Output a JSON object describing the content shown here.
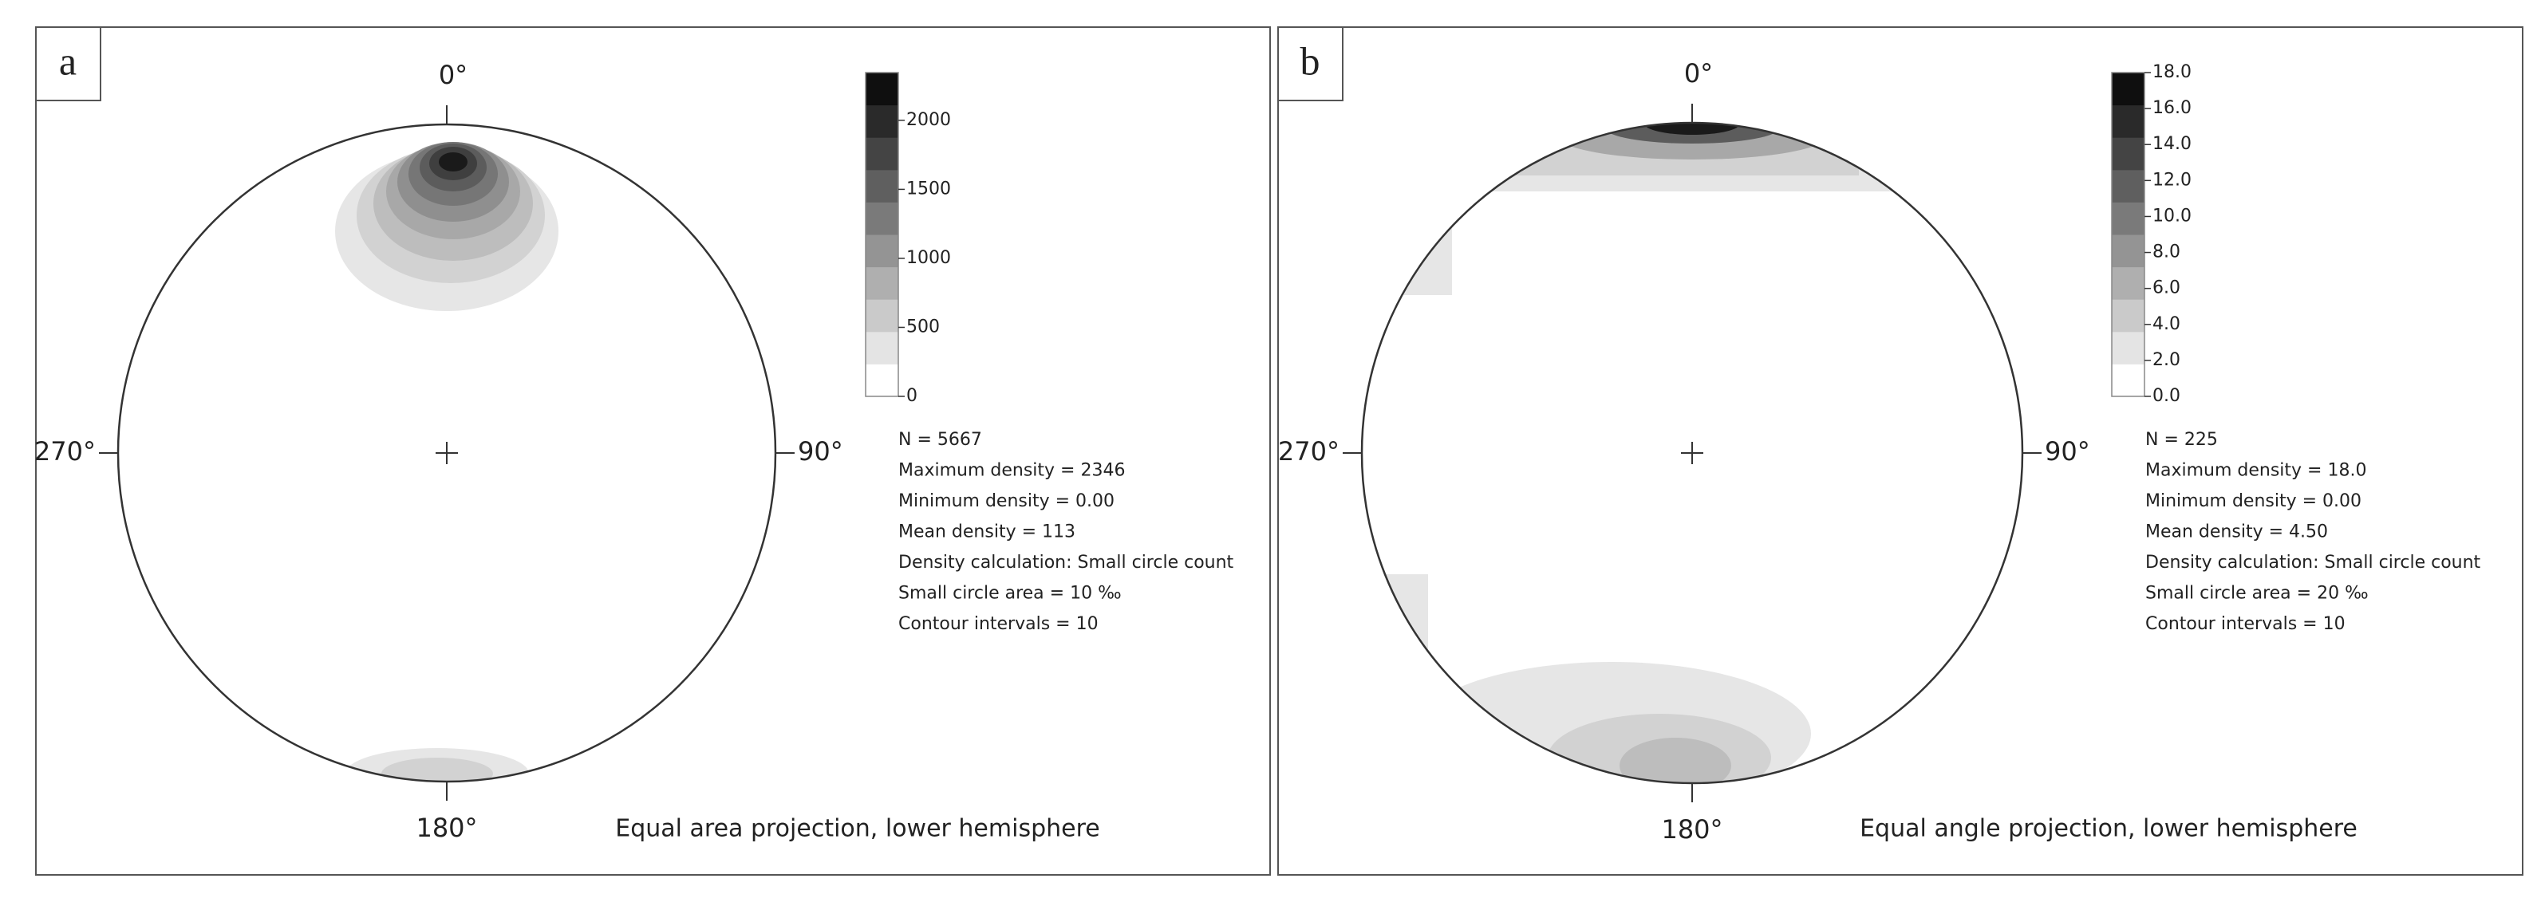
{
  "chart_data": [
    {
      "type": "stereonet",
      "panel_label": "a",
      "direction_labels": [
        "0°",
        "90°",
        "180°",
        "270°"
      ],
      "projection": "Equal area projection, lower hemisphere",
      "ylim": [
        0,
        2346
      ],
      "yticks": [
        0,
        500,
        1000,
        1500,
        2000
      ],
      "contour_intervals": 10,
      "stats": [
        "N = 5667",
        "Maximum density = 2346",
        "Minimum density = 0.00",
        "Mean density = 113",
        "Density calculation: Small circle count",
        "Small circle area = 10 ‰",
        "Contour intervals = 10"
      ]
    },
    {
      "type": "stereonet",
      "panel_label": "b",
      "direction_labels": [
        "0°",
        "90°",
        "180°",
        "270°"
      ],
      "projection": "Equal angle projection, lower hemisphere",
      "ylim": [
        0,
        18
      ],
      "yticks": [
        {
          "value": 0,
          "label": "0.0"
        },
        {
          "value": 2,
          "label": "2.0"
        },
        {
          "value": 4,
          "label": "4.0"
        },
        {
          "value": 6,
          "label": "6.0"
        },
        {
          "value": 8,
          "label": "8.0"
        },
        {
          "value": 10,
          "label": "10.0"
        },
        {
          "value": 12,
          "label": "12.0"
        },
        {
          "value": 14,
          "label": "14.0"
        },
        {
          "value": 16,
          "label": "16.0"
        },
        {
          "value": 18,
          "label": "18.0"
        }
      ],
      "contour_intervals": 10,
      "stats": [
        "N = 225",
        "Maximum density = 18.0",
        "Minimum density = 0.00",
        "Mean density = 4.50",
        "Density calculation: Small circle count",
        "Small circle area = 20 ‰",
        "Contour intervals = 10"
      ]
    }
  ]
}
